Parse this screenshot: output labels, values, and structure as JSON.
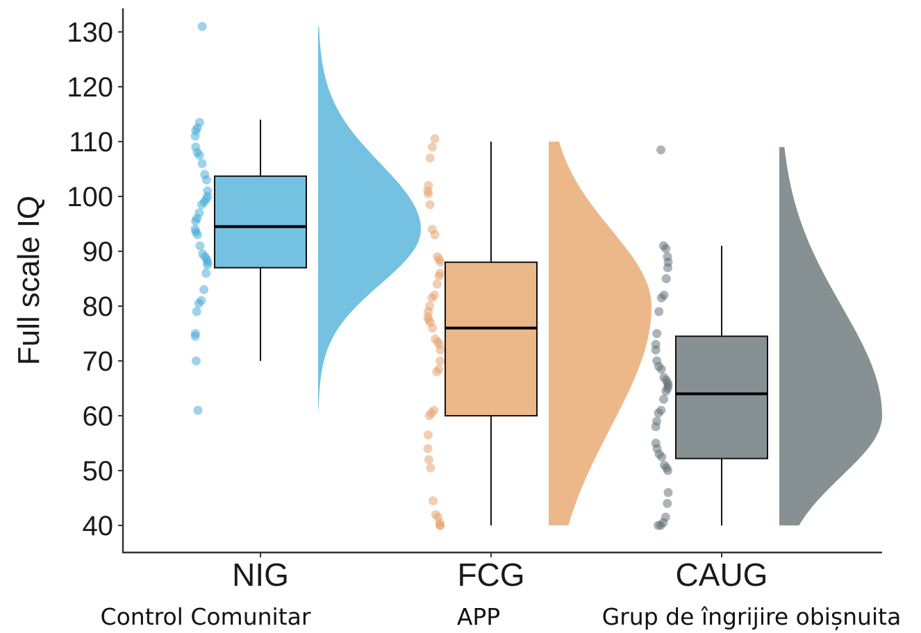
{
  "chart_data": {
    "type": "raincloud",
    "title": "",
    "xlabel": "",
    "ylabel": "Full scale IQ",
    "ylim": [
      35,
      135
    ],
    "yticks": [
      40,
      50,
      60,
      70,
      80,
      90,
      100,
      110,
      120,
      130
    ],
    "categories": [
      "NIG",
      "FCG",
      "CAUG"
    ],
    "category_sublabels": [
      "Control Comunitar",
      "APP",
      "Grup de îngrijire obișnuita"
    ],
    "colors": {
      "NIG": "#74c1e2",
      "FCG": "#ecb88a",
      "CAUG": "#879092"
    },
    "point_colors": {
      "NIG": "#3ea8d8",
      "FCG": "#e4a06a",
      "CAUG": "#5a6a70"
    },
    "boxes": [
      {
        "name": "NIG",
        "min": 70,
        "q1": 87,
        "median": 94.5,
        "q3": 103.7,
        "max": 114
      },
      {
        "name": "FCG",
        "min": 40,
        "q1": 60,
        "median": 76,
        "q3": 88,
        "max": 110
      },
      {
        "name": "CAUG",
        "min": 40,
        "q1": 52.2,
        "median": 64,
        "q3": 74.5,
        "max": 91
      }
    ],
    "points": [
      {
        "name": "NIG",
        "values": [
          131,
          113.5,
          112.5,
          112,
          111,
          109,
          108,
          107.5,
          106,
          104,
          103,
          101,
          100,
          99.5,
          99,
          98.5,
          97,
          96,
          95.5,
          94,
          93.5,
          93,
          91,
          89.5,
          89,
          88.5,
          88,
          87.5,
          86,
          83,
          81,
          80.5,
          79,
          75,
          74.5,
          70,
          61
        ]
      },
      {
        "name": "FCG",
        "values": [
          110.5,
          109,
          107,
          102,
          101,
          100.5,
          98.5,
          94,
          93,
          89,
          88.5,
          88,
          86,
          85.5,
          84,
          82,
          81.5,
          80,
          79,
          78,
          77.5,
          77,
          76,
          74,
          73.5,
          73,
          72,
          70,
          68.5,
          68,
          61,
          60.5,
          60,
          56.5,
          54,
          52,
          50.5,
          44.5,
          42,
          41.5,
          40.5,
          40,
          40
        ]
      },
      {
        "name": "CAUG",
        "values": [
          108.5,
          91,
          90.5,
          89,
          88,
          87,
          85,
          82,
          81.5,
          79,
          75,
          73,
          72,
          70,
          69,
          68.5,
          67,
          66.5,
          66,
          65.5,
          65,
          64.5,
          63,
          61,
          60.5,
          59,
          58,
          55,
          54,
          53,
          52.5,
          51,
          50.5,
          50,
          46,
          44,
          41.5,
          40.5,
          40,
          40
        ]
      }
    ],
    "density": [
      {
        "name": "NIG",
        "range": [
          61,
          131
        ],
        "mode": 94,
        "spread_low": 10,
        "spread_high": 12
      },
      {
        "name": "FCG",
        "range": [
          40,
          110
        ],
        "mode": 80,
        "spread_low": 22,
        "spread_high": 14
      },
      {
        "name": "CAUG",
        "range": [
          40,
          109
        ],
        "mode": 60,
        "spread_low": 11,
        "spread_high": 20
      }
    ]
  }
}
